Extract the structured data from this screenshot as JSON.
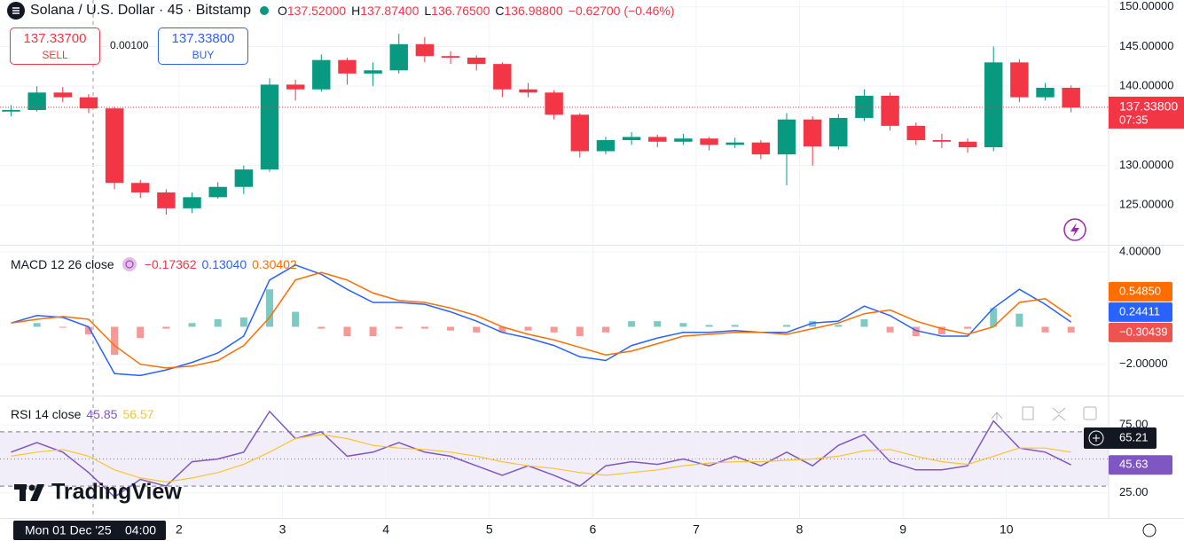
{
  "header": {
    "symbol": "Solana / U.S. Dollar · 45 · Bitstamp",
    "ohlc": [
      {
        "key": "O",
        "value": "137.52000"
      },
      {
        "key": "H",
        "value": "137.87400"
      },
      {
        "key": "L",
        "value": "136.76500"
      },
      {
        "key": "C",
        "value": "136.98800"
      }
    ],
    "change": "−0.62700 (−0.46%)"
  },
  "trade": {
    "sell_price": "137.33700",
    "sell": "SELL",
    "spread": "0.00100",
    "buy_price": "137.33800",
    "buy": "BUY"
  },
  "logo": "TradingView",
  "crosshair": {
    "date": "Mon 01 Dec '25",
    "time": "04:00",
    "rsi_value": "65.21"
  },
  "chart_data": [
    {
      "type": "candlestick",
      "up_color": "#089981",
      "down_color": "#f23645",
      "x": [
        0.375,
        0.625,
        0.875,
        1.125,
        1.375,
        1.625,
        1.875,
        2.125,
        2.375,
        2.625,
        2.875,
        3.125,
        3.375,
        3.625,
        3.875,
        4.125,
        4.375,
        4.625,
        4.875,
        5.125,
        5.375,
        5.625,
        5.875,
        6.125,
        6.375,
        6.625,
        6.875,
        7.125,
        7.375,
        7.625,
        7.875,
        8.125,
        8.375,
        8.625,
        8.875,
        9.125,
        9.375,
        9.625,
        9.875,
        10.125,
        10.375,
        10.625
      ],
      "open": [
        136.8,
        137.0,
        139.2,
        138.6,
        137.2,
        127.8,
        126.6,
        124.6,
        126.0,
        127.3,
        129.5,
        140.2,
        139.6,
        143.3,
        141.6,
        142.0,
        145.3,
        143.8,
        143.6,
        142.8,
        139.6,
        139.2,
        136.4,
        131.8,
        133.2,
        133.6,
        133.0,
        133.4,
        132.6,
        132.9,
        131.4,
        135.8,
        132.4,
        136.0,
        138.8,
        135.0,
        133.2,
        133.0,
        132.3,
        143.0,
        138.6,
        139.8
      ],
      "high": [
        137.6,
        140.0,
        139.9,
        139.0,
        137.4,
        128.2,
        127.0,
        126.6,
        127.9,
        130.0,
        141.0,
        140.8,
        144.0,
        143.6,
        143.0,
        146.6,
        146.2,
        144.4,
        143.9,
        143.0,
        140.4,
        139.5,
        136.6,
        133.6,
        134.2,
        133.9,
        134.0,
        133.6,
        133.5,
        133.2,
        136.6,
        136.2,
        136.5,
        139.6,
        139.2,
        135.4,
        134.0,
        133.4,
        145.0,
        143.4,
        140.4,
        140.1
      ],
      "low": [
        136.2,
        136.8,
        138.0,
        136.6,
        127.0,
        125.9,
        123.8,
        124.0,
        125.8,
        126.4,
        129.2,
        138.2,
        139.3,
        140.2,
        140.0,
        141.6,
        143.0,
        142.8,
        142.0,
        138.6,
        138.6,
        135.8,
        131.0,
        131.4,
        132.6,
        132.3,
        132.6,
        131.9,
        132.2,
        130.8,
        127.5,
        130.0,
        132.0,
        135.6,
        134.4,
        132.6,
        132.2,
        131.6,
        131.8,
        138.0,
        138.2,
        136.7
      ],
      "close": [
        137.0,
        139.2,
        138.6,
        137.2,
        127.8,
        126.6,
        124.6,
        126.0,
        127.3,
        129.5,
        140.2,
        139.6,
        143.3,
        141.6,
        142.0,
        145.3,
        143.8,
        143.6,
        142.8,
        139.6,
        139.2,
        136.4,
        131.8,
        133.2,
        133.6,
        133.0,
        133.4,
        132.6,
        132.9,
        131.4,
        135.8,
        132.4,
        136.0,
        138.8,
        135.0,
        133.2,
        133.0,
        132.3,
        143.0,
        138.6,
        139.8,
        137.3
      ],
      "xlim": [
        0.268,
        10.988
      ],
      "ylim": [
        120.0,
        150.87
      ],
      "yticks": [
        {
          "value": 150,
          "label": "150.00000"
        },
        {
          "value": 145,
          "label": "145.00000"
        },
        {
          "value": 140,
          "label": "140.00000"
        },
        {
          "value": 130,
          "label": "130.00000"
        },
        {
          "value": 125,
          "label": "125.00000"
        }
      ],
      "last_price": {
        "value": 137.338,
        "label": "137.33800"
      },
      "countdown": "07:35",
      "grid": true
    },
    {
      "type": "macd",
      "title": "MACD 12 26 close",
      "legend": [
        {
          "label": "−0.17362",
          "color": "#f23645"
        },
        {
          "label": "0.13040",
          "color": "#2962ff"
        },
        {
          "label": "0.30402",
          "color": "#ff6d00"
        }
      ],
      "x": [
        0.375,
        0.625,
        0.875,
        1.125,
        1.375,
        1.625,
        1.875,
        2.125,
        2.375,
        2.625,
        2.875,
        3.125,
        3.375,
        3.625,
        3.875,
        4.125,
        4.375,
        4.625,
        4.875,
        5.125,
        5.375,
        5.625,
        5.875,
        6.125,
        6.375,
        6.625,
        6.875,
        7.125,
        7.375,
        7.625,
        7.875,
        8.125,
        8.375,
        8.625,
        8.875,
        9.125,
        9.375,
        9.625,
        9.875,
        10.125,
        10.375,
        10.625
      ],
      "histogram": {
        "up_color": "#26a69a",
        "down_color": "#ef5350",
        "last_label": "−0.30439",
        "values": [
          0,
          0.2,
          -0.05,
          -0.4,
          -1.5,
          -0.6,
          -0.1,
          0.2,
          0.4,
          0.5,
          2.0,
          0.8,
          -0.1,
          -0.5,
          -0.5,
          -0.1,
          -0.1,
          -0.2,
          -0.3,
          -0.3,
          -0.2,
          -0.3,
          -0.5,
          -0.3,
          0.3,
          0.3,
          0.2,
          0.1,
          0.1,
          0,
          0.1,
          0.3,
          0.1,
          0.4,
          -0.3,
          -0.5,
          -0.4,
          -0.1,
          1.0,
          0.7,
          -0.3,
          -0.30439
        ]
      },
      "series": [
        {
          "color": "#2962ff",
          "last_label": "0.24411",
          "values": [
            0.2,
            0.6,
            0.5,
            0.0,
            -2.5,
            -2.6,
            -2.3,
            -1.9,
            -1.4,
            -0.5,
            2.5,
            3.3,
            2.8,
            2.0,
            1.3,
            1.3,
            1.2,
            0.8,
            0.3,
            -0.3,
            -0.6,
            -1.0,
            -1.6,
            -1.8,
            -1.0,
            -0.6,
            -0.3,
            -0.3,
            -0.2,
            -0.3,
            -0.3,
            0.2,
            0.3,
            1.1,
            0.6,
            -0.2,
            -0.5,
            -0.5,
            1.0,
            2.0,
            1.2,
            0.24411
          ]
        },
        {
          "color": "#ff6d00",
          "last_label": "0.54850",
          "values": [
            0.2,
            0.4,
            0.55,
            0.4,
            -1.0,
            -2.0,
            -2.2,
            -2.1,
            -1.8,
            -1.0,
            0.5,
            2.5,
            2.9,
            2.5,
            1.8,
            1.4,
            1.3,
            1.0,
            0.6,
            0.0,
            -0.4,
            -0.7,
            -1.1,
            -1.5,
            -1.3,
            -0.9,
            -0.5,
            -0.4,
            -0.3,
            -0.3,
            -0.4,
            -0.1,
            0.2,
            0.7,
            0.9,
            0.3,
            -0.1,
            -0.4,
            0.0,
            1.3,
            1.5,
            0.5485
          ]
        }
      ],
      "xlim": [
        0.268,
        10.988
      ],
      "ylim": [
        -3.67,
        4.33
      ],
      "yticks": [
        {
          "value": 4,
          "label": "4.00000"
        },
        {
          "value": -2,
          "label": "−2.00000"
        }
      ]
    },
    {
      "type": "rsi",
      "title": "RSI 14 close",
      "legend": [
        {
          "label": "45.85",
          "color": "#7e57c2"
        },
        {
          "label": "56.57",
          "color": "#f7c52b"
        }
      ],
      "x": [
        0.375,
        0.625,
        0.875,
        1.125,
        1.375,
        1.625,
        1.875,
        2.125,
        2.375,
        2.625,
        2.875,
        3.125,
        3.375,
        3.625,
        3.875,
        4.125,
        4.375,
        4.625,
        4.875,
        5.125,
        5.375,
        5.625,
        5.875,
        6.125,
        6.375,
        6.625,
        6.875,
        7.125,
        7.375,
        7.625,
        7.875,
        8.125,
        8.375,
        8.625,
        8.875,
        9.125,
        9.375,
        9.625,
        9.875,
        10.125,
        10.375,
        10.625
      ],
      "series": [
        {
          "color": "#7e57c2",
          "last_label": "45.63",
          "values": [
            55,
            62,
            55,
            40,
            22,
            35,
            30,
            48,
            50,
            55,
            85,
            65,
            70,
            52,
            55,
            62,
            55,
            52,
            45,
            38,
            45,
            38,
            30,
            45,
            48,
            46,
            50,
            45,
            52,
            45,
            55,
            45,
            60,
            68,
            48,
            42,
            42,
            45,
            78,
            58,
            55,
            45.63
          ]
        },
        {
          "color": "#f7c52b",
          "values": [
            52,
            55,
            57,
            52,
            42,
            36,
            33,
            36,
            40,
            46,
            55,
            65,
            68,
            65,
            60,
            58,
            57,
            55,
            52,
            48,
            45,
            43,
            40,
            38,
            40,
            42,
            45,
            47,
            48,
            48,
            49,
            50,
            52,
            56,
            57,
            52,
            48,
            46,
            52,
            58,
            58,
            55
          ]
        }
      ],
      "bands": [
        30,
        50,
        70
      ],
      "xlim": [
        0.268,
        10.988
      ],
      "ylim": [
        6.6,
        96
      ],
      "yticks": [
        {
          "value": 75,
          "label": "75.00"
        },
        {
          "value": 25,
          "label": "25.00"
        }
      ],
      "xticks": [
        2,
        3,
        4,
        5,
        6,
        7,
        8,
        9,
        10
      ]
    }
  ]
}
